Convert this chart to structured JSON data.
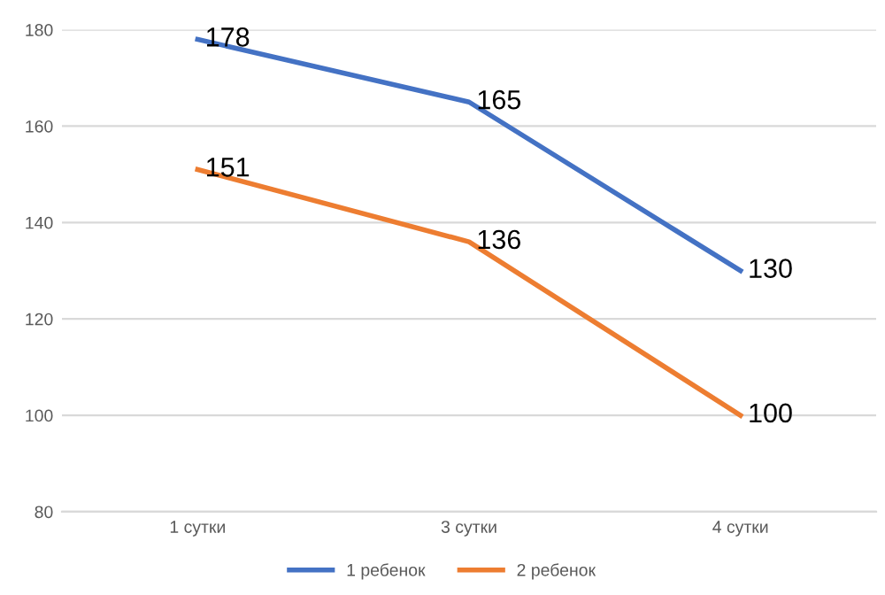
{
  "chart_data": {
    "type": "line",
    "categories": [
      "1 сутки",
      "3 сутки",
      "4 сутки"
    ],
    "series": [
      {
        "name": "1 ребенок",
        "color": "#4472c4",
        "values": [
          178,
          165,
          130
        ]
      },
      {
        "name": "2 ребенок",
        "color": "#ed7d31",
        "values": [
          151,
          136,
          100
        ]
      }
    ],
    "ylim": [
      80,
      180
    ],
    "yticks": [
      80,
      100,
      120,
      140,
      160,
      180
    ],
    "grid": "y",
    "legend": "bottom",
    "data_labels": true,
    "marker": "none",
    "line_style": "solid"
  }
}
